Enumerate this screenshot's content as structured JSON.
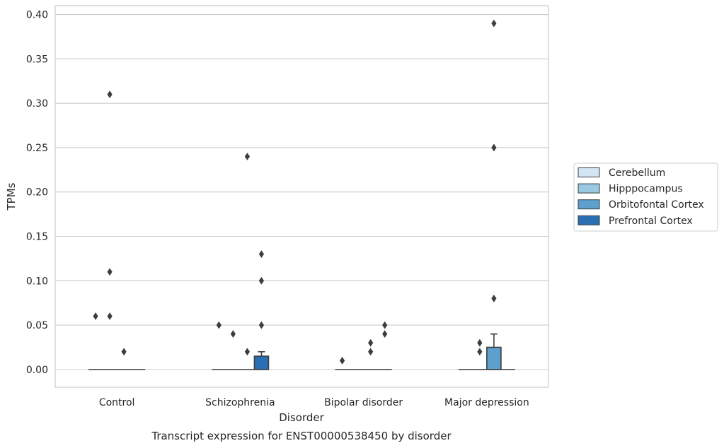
{
  "chart_data": {
    "type": "box",
    "xlabel": "Disorder",
    "ylabel": "TPMs",
    "caption": "Transcript expression for ENST00000538450 by disorder",
    "ylim": [
      -0.02,
      0.41
    ],
    "yticks": [
      0.0,
      0.05,
      0.1,
      0.15,
      0.2,
      0.25,
      0.3,
      0.35,
      0.4
    ],
    "ytick_labels": [
      "0.00",
      "0.05",
      "0.10",
      "0.15",
      "0.20",
      "0.25",
      "0.30",
      "0.35",
      "0.40"
    ],
    "grid": "horizontal",
    "categories": [
      "Control",
      "Schizophrenia",
      "Bipolar disorder",
      "Major depression"
    ],
    "legend_position": "right",
    "series": [
      {
        "name": "Cerebellum",
        "color": "#d3e4f3",
        "boxes": [
          {
            "q1": 0,
            "median": 0,
            "q3": 0,
            "whisker_low": 0,
            "whisker_high": 0,
            "outliers": [
              0.06
            ]
          },
          {
            "q1": 0,
            "median": 0,
            "q3": 0,
            "whisker_low": 0,
            "whisker_high": 0,
            "outliers": [
              0.05
            ]
          },
          {
            "q1": 0,
            "median": 0,
            "q3": 0,
            "whisker_low": 0,
            "whisker_high": 0,
            "outliers": [
              0.01
            ]
          },
          {
            "q1": 0,
            "median": 0,
            "q3": 0,
            "whisker_low": 0,
            "whisker_high": 0,
            "outliers": []
          }
        ]
      },
      {
        "name": "Hipppocampus",
        "color": "#9ac8e0",
        "boxes": [
          {
            "q1": 0,
            "median": 0,
            "q3": 0,
            "whisker_low": 0,
            "whisker_high": 0,
            "outliers": [
              0.31,
              0.11,
              0.06
            ]
          },
          {
            "q1": 0,
            "median": 0,
            "q3": 0,
            "whisker_low": 0,
            "whisker_high": 0,
            "outliers": [
              0.04
            ]
          },
          {
            "q1": 0,
            "median": 0,
            "q3": 0,
            "whisker_low": 0,
            "whisker_high": 0,
            "outliers": []
          },
          {
            "q1": 0,
            "median": 0,
            "q3": 0,
            "whisker_low": 0,
            "whisker_high": 0,
            "outliers": [
              0.03,
              0.02
            ]
          }
        ]
      },
      {
        "name": "Orbitofontal Cortex",
        "color": "#5da0ce",
        "boxes": [
          {
            "q1": 0,
            "median": 0,
            "q3": 0,
            "whisker_low": 0,
            "whisker_high": 0,
            "outliers": [
              0.02
            ]
          },
          {
            "q1": 0,
            "median": 0,
            "q3": 0,
            "whisker_low": 0,
            "whisker_high": 0,
            "outliers": [
              0.24,
              0.02
            ]
          },
          {
            "q1": 0,
            "median": 0,
            "q3": 0,
            "whisker_low": 0,
            "whisker_high": 0,
            "outliers": [
              0.03,
              0.02
            ]
          },
          {
            "q1": 0,
            "median": 0,
            "q3": 0.025,
            "whisker_low": 0,
            "whisker_high": 0.04,
            "outliers": [
              0.39,
              0.25,
              0.08
            ]
          }
        ]
      },
      {
        "name": "Prefrontal Cortex",
        "color": "#2a6fb3",
        "boxes": [
          {
            "q1": 0,
            "median": 0,
            "q3": 0,
            "whisker_low": 0,
            "whisker_high": 0,
            "outliers": []
          },
          {
            "q1": 0,
            "median": 0,
            "q3": 0.015,
            "whisker_low": 0,
            "whisker_high": 0.02,
            "outliers": [
              0.13,
              0.1,
              0.05
            ]
          },
          {
            "q1": 0,
            "median": 0,
            "q3": 0,
            "whisker_low": 0,
            "whisker_high": 0,
            "outliers": [
              0.05,
              0.04
            ]
          },
          {
            "q1": 0,
            "median": 0,
            "q3": 0,
            "whisker_low": 0,
            "whisker_high": 0,
            "outliers": []
          }
        ]
      }
    ]
  }
}
